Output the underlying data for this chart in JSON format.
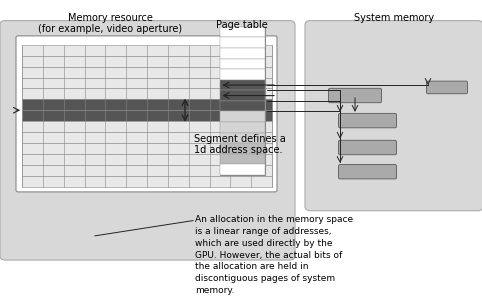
{
  "bg_color": "#d8d8d8",
  "white_bg": "#ffffff",
  "title_memory": "Memory resource\n(for example, video aperture)",
  "title_page_table": "Page table",
  "title_system_memory": "System memory",
  "label_segment": "Segment defines a\n1d address space.",
  "label_allocation": "An allocation in the memory space\nis a linear range of addresses,\nwhich are used directly by the\nGPU. However, the actual bits of\nthe allocation are held in\ndiscontiguous pages of system\nmemory.",
  "grid_color": "#888888",
  "dark_row_color": "#555555",
  "light_row_color": "#e8e8e8",
  "page_table_dark": "#555555",
  "page_table_light": "#bbbbbb",
  "page_table_lighter": "#d4d4d4",
  "system_box_fill": "#aaaaaa",
  "system_box_border": "#666666",
  "arrow_color": "#222222"
}
